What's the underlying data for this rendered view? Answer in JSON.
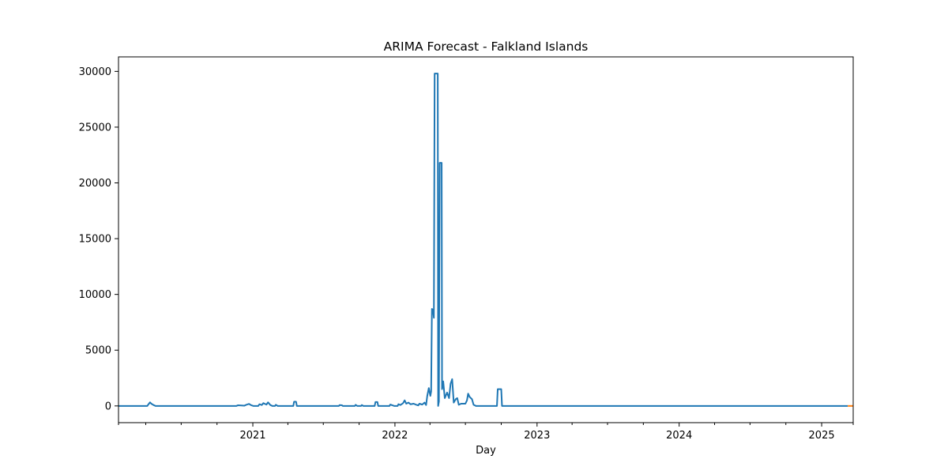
{
  "chart_data": {
    "type": "line",
    "title": "ARIMA Forecast - Falkland Islands",
    "xlabel": "Day",
    "ylabel": "",
    "x_axis_type": "date",
    "xlim": [
      "2020-01-22",
      "2025-03-23"
    ],
    "ylim": [
      -1500,
      31300
    ],
    "grid": false,
    "legend": "none",
    "x_ticks": [
      {
        "date": "2021-01-01",
        "label": "2021"
      },
      {
        "date": "2022-01-01",
        "label": "2022"
      },
      {
        "date": "2023-01-01",
        "label": "2023"
      },
      {
        "date": "2024-01-01",
        "label": "2024"
      },
      {
        "date": "2025-01-01",
        "label": "2025"
      }
    ],
    "x_minor_ticks": [
      "2020-01-22",
      "2020-04-01",
      "2020-07-01",
      "2020-10-01",
      "2021-04-01",
      "2021-07-01",
      "2021-10-01",
      "2022-04-01",
      "2022-07-01",
      "2022-10-01",
      "2023-04-01",
      "2023-07-01",
      "2023-10-01",
      "2024-04-01",
      "2024-07-01",
      "2024-10-01",
      "2025-03-23"
    ],
    "y_ticks": [
      0,
      5000,
      10000,
      15000,
      20000,
      25000,
      30000
    ],
    "y_tick_labels": [
      "0",
      "5000",
      "10000",
      "15000",
      "20000",
      "25000",
      "30000"
    ],
    "series": [
      {
        "color": "#1f77b4",
        "points": [
          [
            "2020-01-22",
            0
          ],
          [
            "2020-04-05",
            0
          ],
          [
            "2020-04-08",
            150
          ],
          [
            "2020-04-12",
            320
          ],
          [
            "2020-04-16",
            180
          ],
          [
            "2020-04-22",
            60
          ],
          [
            "2020-04-26",
            0
          ],
          [
            "2020-11-20",
            0
          ],
          [
            "2020-11-24",
            60
          ],
          [
            "2020-12-02",
            40
          ],
          [
            "2020-12-10",
            20
          ],
          [
            "2020-12-15",
            100
          ],
          [
            "2020-12-22",
            180
          ],
          [
            "2020-12-28",
            60
          ],
          [
            "2021-01-02",
            0
          ],
          [
            "2021-01-15",
            0
          ],
          [
            "2021-01-18",
            150
          ],
          [
            "2021-01-24",
            80
          ],
          [
            "2021-01-28",
            250
          ],
          [
            "2021-02-05",
            120
          ],
          [
            "2021-02-09",
            320
          ],
          [
            "2021-02-15",
            80
          ],
          [
            "2021-02-20",
            0
          ],
          [
            "2021-02-27",
            0
          ],
          [
            "2021-03-01",
            100
          ],
          [
            "2021-03-06",
            0
          ],
          [
            "2021-04-15",
            0
          ],
          [
            "2021-04-17",
            380
          ],
          [
            "2021-04-22",
            380
          ],
          [
            "2021-04-24",
            0
          ],
          [
            "2021-08-10",
            0
          ],
          [
            "2021-08-12",
            80
          ],
          [
            "2021-08-18",
            60
          ],
          [
            "2021-08-20",
            0
          ],
          [
            "2021-09-20",
            0
          ],
          [
            "2021-09-22",
            100
          ],
          [
            "2021-09-26",
            0
          ],
          [
            "2021-10-06",
            0
          ],
          [
            "2021-10-08",
            80
          ],
          [
            "2021-10-12",
            0
          ],
          [
            "2021-11-10",
            0
          ],
          [
            "2021-11-12",
            350
          ],
          [
            "2021-11-17",
            350
          ],
          [
            "2021-11-19",
            0
          ],
          [
            "2021-12-18",
            0
          ],
          [
            "2021-12-20",
            120
          ],
          [
            "2021-12-25",
            60
          ],
          [
            "2021-12-30",
            0
          ],
          [
            "2022-01-08",
            0
          ],
          [
            "2022-01-10",
            150
          ],
          [
            "2022-01-15",
            80
          ],
          [
            "2022-01-22",
            250
          ],
          [
            "2022-01-26",
            500
          ],
          [
            "2022-01-30",
            200
          ],
          [
            "2022-02-05",
            300
          ],
          [
            "2022-02-10",
            150
          ],
          [
            "2022-02-18",
            200
          ],
          [
            "2022-02-25",
            100
          ],
          [
            "2022-03-02",
            50
          ],
          [
            "2022-03-05",
            200
          ],
          [
            "2022-03-12",
            120
          ],
          [
            "2022-03-18",
            300
          ],
          [
            "2022-03-22",
            80
          ],
          [
            "2022-03-25",
            900
          ],
          [
            "2022-03-29",
            1600
          ],
          [
            "2022-04-02",
            900
          ],
          [
            "2022-04-04",
            1300
          ],
          [
            "2022-04-06",
            8700
          ],
          [
            "2022-04-09",
            8600
          ],
          [
            "2022-04-11",
            7900
          ],
          [
            "2022-04-13",
            29800
          ],
          [
            "2022-04-21",
            29800
          ],
          [
            "2022-04-22",
            0
          ],
          [
            "2022-04-24",
            400
          ],
          [
            "2022-04-26",
            21800
          ],
          [
            "2022-05-01",
            21800
          ],
          [
            "2022-05-02",
            1500
          ],
          [
            "2022-05-05",
            2200
          ],
          [
            "2022-05-09",
            700
          ],
          [
            "2022-05-15",
            1200
          ],
          [
            "2022-05-20",
            700
          ],
          [
            "2022-05-24",
            2000
          ],
          [
            "2022-05-28",
            2400
          ],
          [
            "2022-06-01",
            300
          ],
          [
            "2022-06-06",
            600
          ],
          [
            "2022-06-10",
            700
          ],
          [
            "2022-06-14",
            100
          ],
          [
            "2022-06-20",
            200
          ],
          [
            "2022-07-01",
            200
          ],
          [
            "2022-07-05",
            500
          ],
          [
            "2022-07-08",
            1100
          ],
          [
            "2022-07-12",
            800
          ],
          [
            "2022-07-18",
            600
          ],
          [
            "2022-07-22",
            100
          ],
          [
            "2022-07-28",
            0
          ],
          [
            "2022-09-20",
            0
          ],
          [
            "2022-09-22",
            1500
          ],
          [
            "2022-10-01",
            1500
          ],
          [
            "2022-10-03",
            0
          ],
          [
            "2025-03-09",
            0
          ]
        ]
      },
      {
        "color": "#ff7f0e",
        "points": [
          [
            "2025-03-09",
            0
          ],
          [
            "2025-03-23",
            0
          ]
        ]
      }
    ]
  }
}
